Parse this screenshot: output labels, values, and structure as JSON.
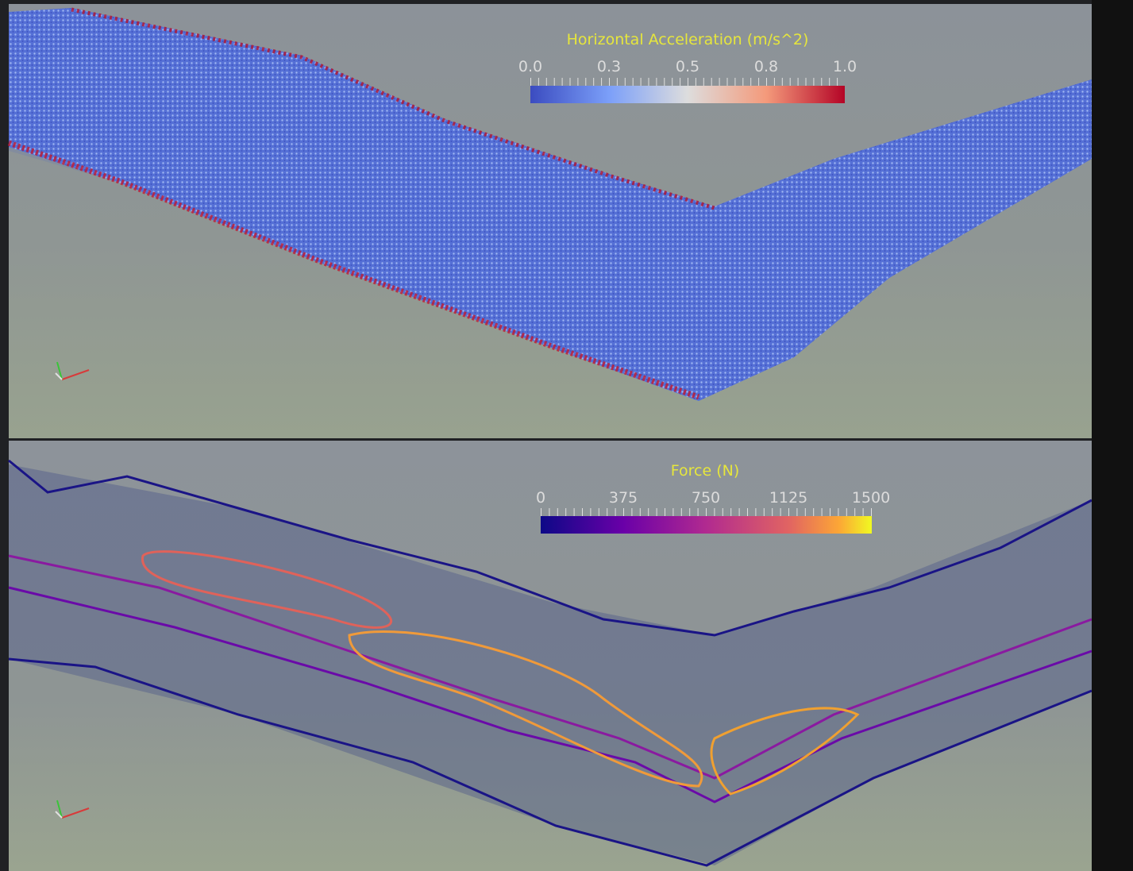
{
  "views": [
    {
      "colorbar": {
        "title": "Horizontal Acceleration (m/s^2)",
        "ticks": [
          "0.0",
          "0.3",
          "0.5",
          "0.8",
          "1.0"
        ]
      }
    },
    {
      "colorbar": {
        "title": "Force (N)",
        "ticks": [
          "0",
          "375",
          "750",
          "1125",
          "1500"
        ]
      }
    }
  ]
}
